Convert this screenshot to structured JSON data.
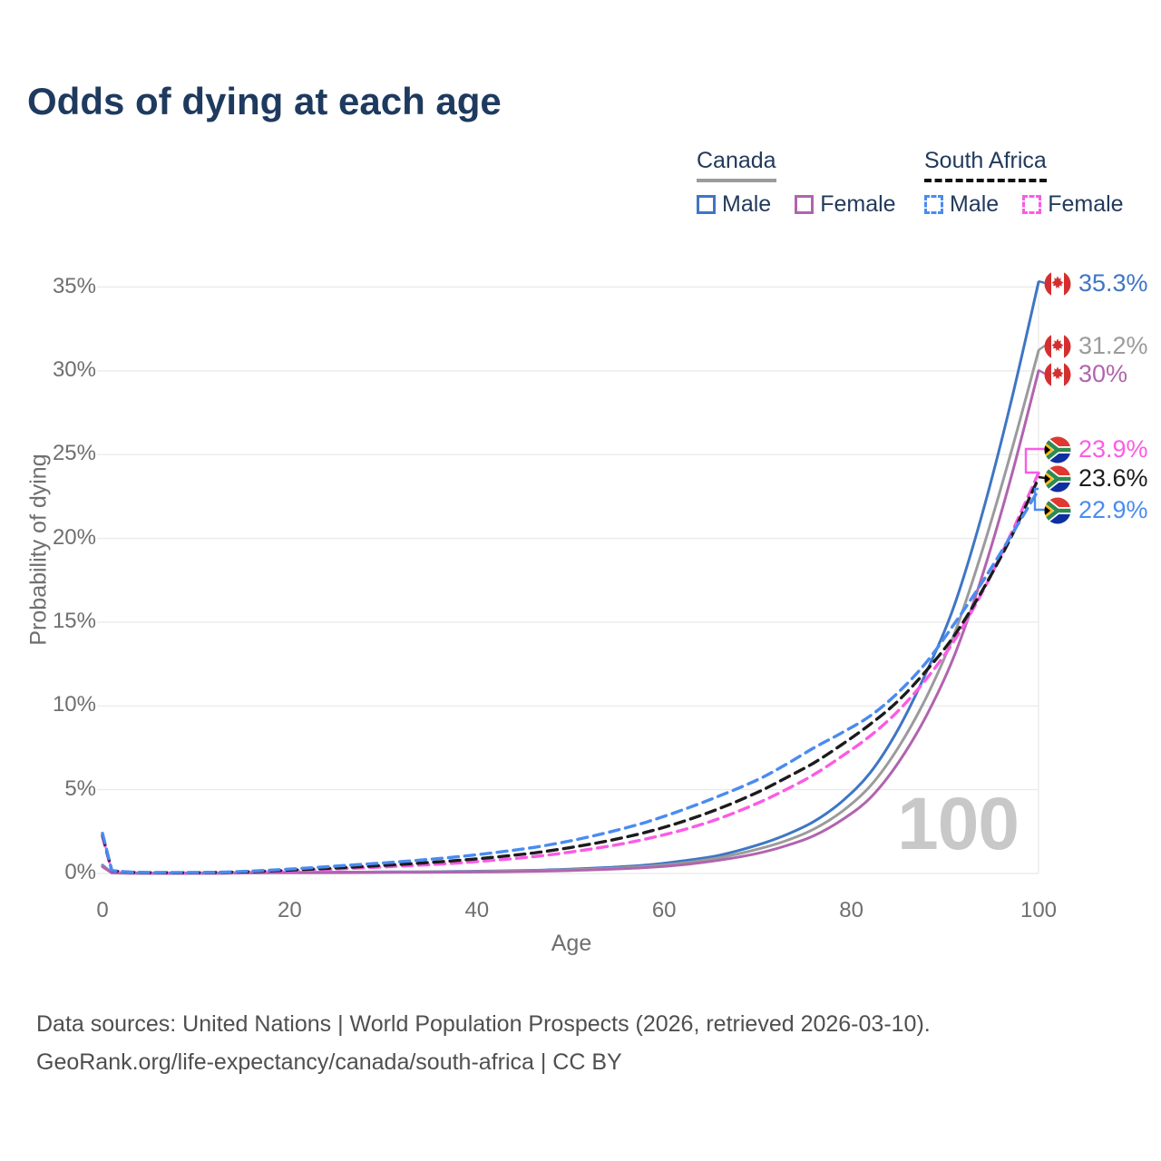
{
  "title": "Odds of dying at each age",
  "watermark": "100",
  "legend": {
    "canada": {
      "title": "Canada",
      "male_label": "Male",
      "female_label": "Female"
    },
    "south_africa": {
      "title": "South Africa",
      "male_label": "Male",
      "female_label": "Female"
    }
  },
  "footer": {
    "line1": "Data sources: United Nations | World Population Prospects (2026, retrieved 2026-03-10).",
    "line2": "GeoRank.org/life-expectancy/canada/south-africa | CC BY"
  },
  "colors": {
    "canada_male": "#3e76c4",
    "canada_both": "#9b9b9b",
    "canada_female": "#b164ae",
    "sa_male": "#4a8bf0",
    "sa_both": "#1c1c1c",
    "sa_female": "#fb5be5",
    "gridline": "#ebebeb",
    "axis_text": "#6f6f6f",
    "title_text": "#1e3a5e"
  },
  "chart_data": {
    "type": "line",
    "title": "Odds of dying at each age",
    "xlabel": "Age",
    "ylabel": "Probability of dying",
    "xlim": [
      0,
      100
    ],
    "ylim": [
      0,
      35
    ],
    "x_ticks": [
      0,
      20,
      40,
      60,
      80,
      100
    ],
    "y_ticks": [
      0,
      5,
      10,
      15,
      20,
      25,
      30,
      35
    ],
    "y_tick_suffix": "%",
    "grid": "horizontal",
    "legend_position": "top-right",
    "series": [
      {
        "id": "canada-male",
        "name": "Canada Male",
        "country": "Canada",
        "flag": "canada",
        "color": "#3e76c4",
        "dash": "solid",
        "end_label": "35.3%",
        "end_value": 35.3,
        "points": [
          [
            0,
            0.5
          ],
          [
            1,
            0.04
          ],
          [
            3,
            0.02
          ],
          [
            5,
            0.01
          ],
          [
            10,
            0.01
          ],
          [
            14,
            0.03
          ],
          [
            18,
            0.06
          ],
          [
            22,
            0.07
          ],
          [
            26,
            0.08
          ],
          [
            30,
            0.09
          ],
          [
            34,
            0.1
          ],
          [
            38,
            0.12
          ],
          [
            42,
            0.15
          ],
          [
            46,
            0.19
          ],
          [
            50,
            0.26
          ],
          [
            54,
            0.36
          ],
          [
            58,
            0.5
          ],
          [
            62,
            0.75
          ],
          [
            66,
            1.1
          ],
          [
            70,
            1.7
          ],
          [
            73,
            2.3
          ],
          [
            76,
            3.1
          ],
          [
            79,
            4.3
          ],
          [
            82,
            6.0
          ],
          [
            85,
            8.6
          ],
          [
            88,
            12.0
          ],
          [
            91,
            16.0
          ],
          [
            94,
            21.5
          ],
          [
            97,
            28.0
          ],
          [
            100,
            35.3
          ]
        ]
      },
      {
        "id": "canada-both",
        "name": "Canada Both sexes",
        "country": "Canada",
        "flag": "canada",
        "color": "#9b9b9b",
        "dash": "solid",
        "end_label": "31.2%",
        "end_value": 31.2,
        "points": [
          [
            0,
            0.45
          ],
          [
            1,
            0.035
          ],
          [
            3,
            0.018
          ],
          [
            5,
            0.009
          ],
          [
            10,
            0.009
          ],
          [
            14,
            0.025
          ],
          [
            18,
            0.05
          ],
          [
            22,
            0.06
          ],
          [
            26,
            0.07
          ],
          [
            30,
            0.08
          ],
          [
            34,
            0.09
          ],
          [
            38,
            0.1
          ],
          [
            42,
            0.13
          ],
          [
            46,
            0.16
          ],
          [
            50,
            0.22
          ],
          [
            54,
            0.3
          ],
          [
            58,
            0.42
          ],
          [
            62,
            0.62
          ],
          [
            66,
            0.95
          ],
          [
            70,
            1.45
          ],
          [
            73,
            1.95
          ],
          [
            76,
            2.65
          ],
          [
            79,
            3.7
          ],
          [
            82,
            5.2
          ],
          [
            85,
            7.5
          ],
          [
            88,
            10.5
          ],
          [
            91,
            14.3
          ],
          [
            94,
            19.3
          ],
          [
            97,
            25.0
          ],
          [
            100,
            31.2
          ]
        ]
      },
      {
        "id": "canada-female",
        "name": "Canada Female",
        "country": "Canada",
        "flag": "canada",
        "color": "#b164ae",
        "dash": "solid",
        "end_label": "30%",
        "end_value": 30,
        "points": [
          [
            0,
            0.4
          ],
          [
            1,
            0.03
          ],
          [
            3,
            0.015
          ],
          [
            5,
            0.008
          ],
          [
            10,
            0.008
          ],
          [
            14,
            0.02
          ],
          [
            18,
            0.04
          ],
          [
            22,
            0.045
          ],
          [
            26,
            0.05
          ],
          [
            30,
            0.06
          ],
          [
            34,
            0.07
          ],
          [
            38,
            0.08
          ],
          [
            42,
            0.1
          ],
          [
            46,
            0.13
          ],
          [
            50,
            0.18
          ],
          [
            54,
            0.25
          ],
          [
            58,
            0.35
          ],
          [
            62,
            0.52
          ],
          [
            66,
            0.8
          ],
          [
            70,
            1.2
          ],
          [
            73,
            1.65
          ],
          [
            76,
            2.25
          ],
          [
            79,
            3.2
          ],
          [
            82,
            4.5
          ],
          [
            85,
            6.6
          ],
          [
            88,
            9.4
          ],
          [
            91,
            13.0
          ],
          [
            94,
            17.8
          ],
          [
            97,
            23.5
          ],
          [
            100,
            30.0
          ]
        ]
      },
      {
        "id": "sa-female",
        "name": "South Africa Female",
        "country": "South Africa",
        "flag": "south-africa",
        "color": "#fb5be5",
        "dash": "dashed",
        "end_label": "23.9%",
        "end_value": 23.9,
        "points": [
          [
            0,
            2.2
          ],
          [
            1,
            0.14
          ],
          [
            3,
            0.06
          ],
          [
            5,
            0.045
          ],
          [
            10,
            0.045
          ],
          [
            14,
            0.07
          ],
          [
            18,
            0.12
          ],
          [
            22,
            0.2
          ],
          [
            26,
            0.29
          ],
          [
            30,
            0.39
          ],
          [
            34,
            0.5
          ],
          [
            38,
            0.63
          ],
          [
            42,
            0.8
          ],
          [
            46,
            1.0
          ],
          [
            50,
            1.28
          ],
          [
            54,
            1.62
          ],
          [
            58,
            2.05
          ],
          [
            62,
            2.6
          ],
          [
            66,
            3.3
          ],
          [
            70,
            4.2
          ],
          [
            73,
            5.0
          ],
          [
            76,
            5.9
          ],
          [
            79,
            7.0
          ],
          [
            82,
            8.2
          ],
          [
            85,
            9.7
          ],
          [
            88,
            11.6
          ],
          [
            91,
            13.9
          ],
          [
            94,
            16.8
          ],
          [
            97,
            20.2
          ],
          [
            100,
            23.9
          ]
        ]
      },
      {
        "id": "sa-both",
        "name": "South Africa Both sexes",
        "country": "South Africa",
        "flag": "south-africa",
        "color": "#1c1c1c",
        "dash": "dashed",
        "end_label": "23.6%",
        "end_value": 23.6,
        "points": [
          [
            0,
            2.3
          ],
          [
            1,
            0.16
          ],
          [
            3,
            0.07
          ],
          [
            5,
            0.05
          ],
          [
            10,
            0.05
          ],
          [
            14,
            0.08
          ],
          [
            18,
            0.15
          ],
          [
            22,
            0.25
          ],
          [
            26,
            0.36
          ],
          [
            30,
            0.48
          ],
          [
            34,
            0.62
          ],
          [
            38,
            0.78
          ],
          [
            42,
            0.98
          ],
          [
            46,
            1.22
          ],
          [
            50,
            1.55
          ],
          [
            54,
            1.95
          ],
          [
            58,
            2.45
          ],
          [
            62,
            3.1
          ],
          [
            66,
            3.9
          ],
          [
            70,
            4.85
          ],
          [
            73,
            5.7
          ],
          [
            76,
            6.6
          ],
          [
            79,
            7.7
          ],
          [
            82,
            8.9
          ],
          [
            85,
            10.3
          ],
          [
            88,
            12.1
          ],
          [
            91,
            14.2
          ],
          [
            94,
            16.9
          ],
          [
            97,
            20.0
          ],
          [
            100,
            23.6
          ]
        ]
      },
      {
        "id": "sa-male",
        "name": "South Africa Male",
        "country": "South Africa",
        "flag": "south-africa",
        "color": "#4a8bf0",
        "dash": "dashed",
        "end_label": "22.9%",
        "end_value": 22.9,
        "points": [
          [
            0,
            2.4
          ],
          [
            1,
            0.18
          ],
          [
            3,
            0.08
          ],
          [
            5,
            0.06
          ],
          [
            10,
            0.06
          ],
          [
            14,
            0.1
          ],
          [
            18,
            0.2
          ],
          [
            22,
            0.33
          ],
          [
            26,
            0.48
          ],
          [
            30,
            0.63
          ],
          [
            34,
            0.8
          ],
          [
            38,
            1.0
          ],
          [
            42,
            1.25
          ],
          [
            46,
            1.55
          ],
          [
            50,
            1.95
          ],
          [
            54,
            2.45
          ],
          [
            58,
            3.05
          ],
          [
            62,
            3.8
          ],
          [
            66,
            4.65
          ],
          [
            70,
            5.6
          ],
          [
            73,
            6.5
          ],
          [
            76,
            7.5
          ],
          [
            79,
            8.4
          ],
          [
            82,
            9.4
          ],
          [
            85,
            10.8
          ],
          [
            88,
            12.6
          ],
          [
            91,
            14.9
          ],
          [
            94,
            17.4
          ],
          [
            97,
            20.1
          ],
          [
            100,
            22.9
          ]
        ]
      }
    ]
  }
}
